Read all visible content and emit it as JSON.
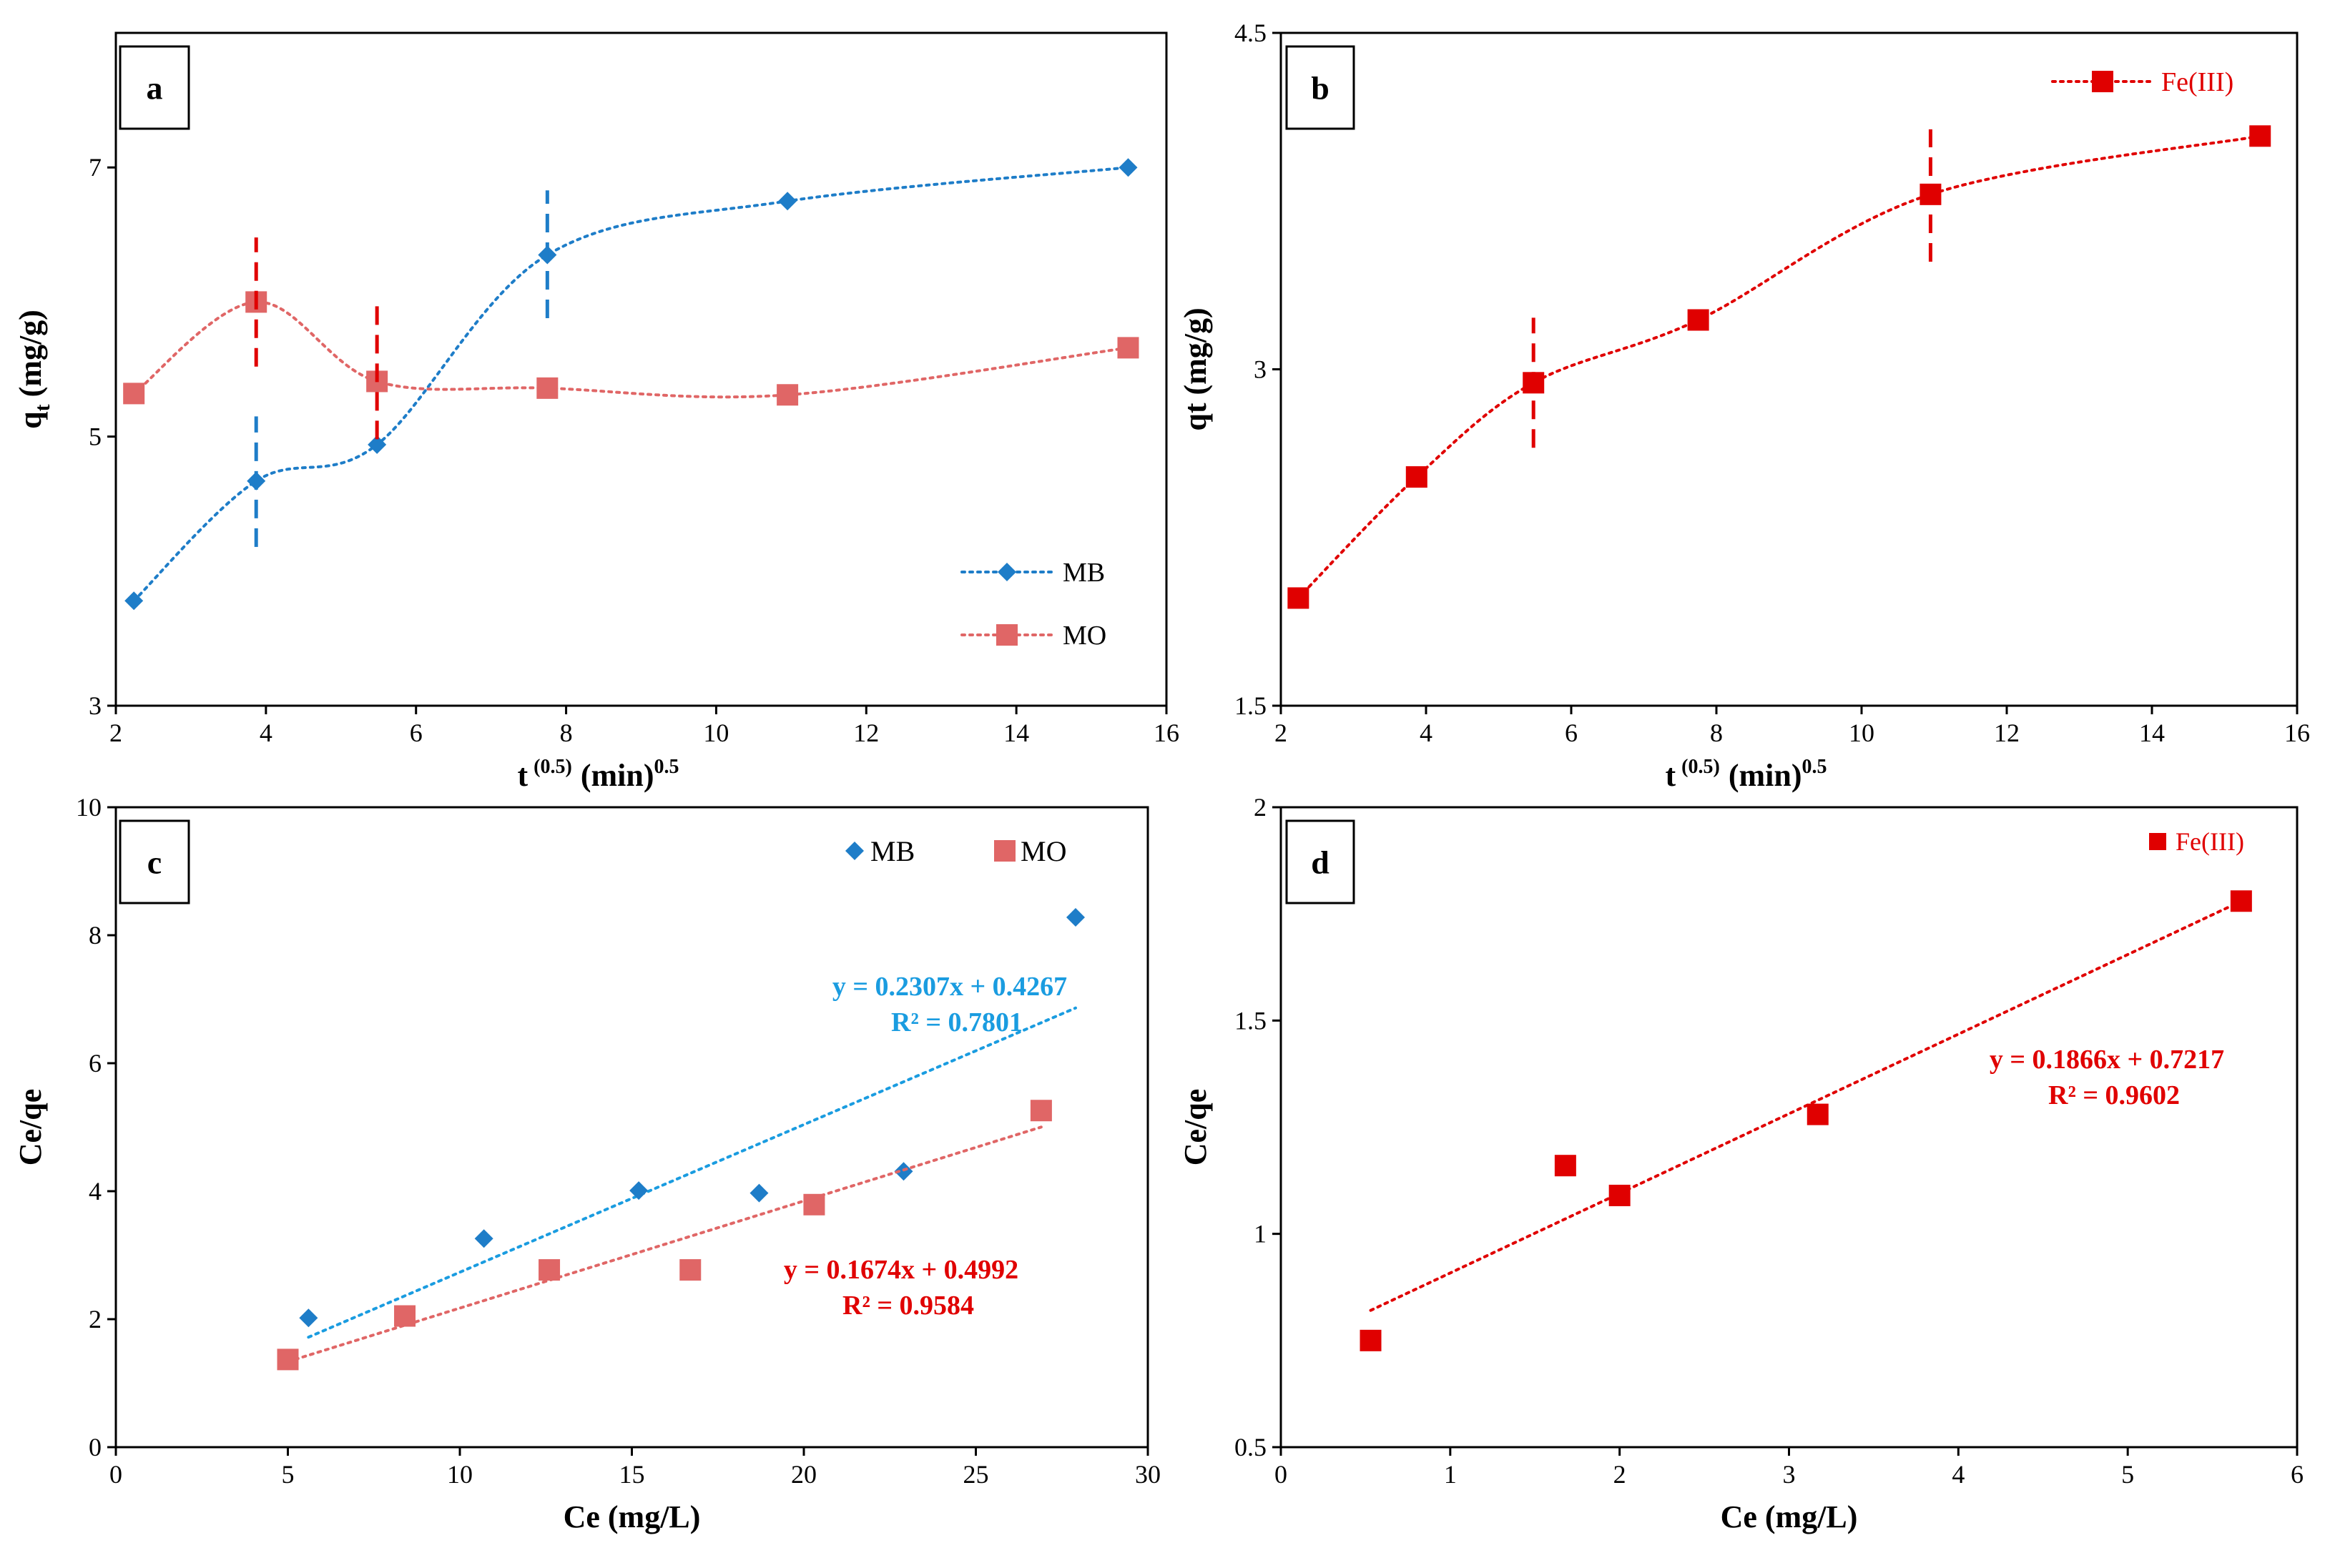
{
  "colors": {
    "mb": "#1E7DC8",
    "mo": "#E06666",
    "fe": "#E00000",
    "eqBlue": "#1A9CE0",
    "eqRed": "#E00000",
    "axis": "#000000"
  },
  "chart_data": [
    {
      "id": "a",
      "panel_label": "a",
      "type": "line",
      "xlabel": "t",
      "xlabel_sup": "(0.5)",
      "xlabel_unit": "(min)",
      "xlabel_unit_sup": "0.5",
      "ylabel": "q",
      "ylabel_sub": "t",
      "ylabel_unit": "(mg/g)",
      "xlim": [
        2,
        16
      ],
      "ylim": [
        3,
        8
      ],
      "xticks": [
        2,
        4,
        6,
        8,
        10,
        12,
        14,
        16
      ],
      "yticks": [
        3,
        5,
        7
      ],
      "series": [
        {
          "name": "MB",
          "marker": "diamond",
          "color": "#1E7DC8",
          "x": [
            2.24,
            3.87,
            5.48,
            7.75,
            10.95,
            15.49
          ],
          "y": [
            3.78,
            4.67,
            4.94,
            6.35,
            6.75,
            7.0
          ]
        },
        {
          "name": "MO",
          "marker": "square",
          "color": "#E06666",
          "x": [
            2.24,
            3.87,
            5.48,
            7.75,
            10.95,
            15.49
          ],
          "y": [
            5.32,
            6.0,
            5.41,
            5.36,
            5.31,
            5.66
          ]
        }
      ],
      "breaks": [
        {
          "x": 3.87,
          "y1": 4.18,
          "y2": 5.15,
          "color": "#1E7DC8"
        },
        {
          "x": 7.75,
          "y1": 5.88,
          "y2": 6.83,
          "color": "#1E7DC8"
        },
        {
          "x": 3.87,
          "y1": 5.52,
          "y2": 6.48,
          "color": "#E00000"
        },
        {
          "x": 5.48,
          "y1": 4.98,
          "y2": 6.0,
          "color": "#E00000"
        }
      ],
      "legend": "bottom-right"
    },
    {
      "id": "b",
      "panel_label": "b",
      "type": "line",
      "xlabel": "t",
      "xlabel_sup": "(0.5)",
      "xlabel_unit": "(min)",
      "xlabel_unit_sup": "0.5",
      "ylabel": "qt (mg/g)",
      "xlim": [
        2,
        16
      ],
      "ylim": [
        1.5,
        4.5
      ],
      "xticks": [
        2,
        4,
        6,
        8,
        10,
        12,
        14,
        16
      ],
      "yticks": [
        1.5,
        3,
        4.5
      ],
      "series": [
        {
          "name": "Fe(III)",
          "marker": "square",
          "color": "#E00000",
          "x": [
            2.24,
            3.87,
            5.48,
            7.75,
            10.95,
            15.49
          ],
          "y": [
            1.98,
            2.52,
            2.94,
            3.22,
            3.78,
            4.04
          ]
        }
      ],
      "breaks": [
        {
          "x": 5.48,
          "y1": 2.65,
          "y2": 3.23,
          "color": "#E00000"
        },
        {
          "x": 10.95,
          "y1": 3.48,
          "y2": 4.07,
          "color": "#E00000"
        }
      ],
      "legend": "top-right"
    },
    {
      "id": "c",
      "panel_label": "c",
      "type": "scatter",
      "xlabel": "Ce (mg/L)",
      "ylabel": "Ce/qe",
      "xlim": [
        0,
        30
      ],
      "ylim": [
        0,
        10
      ],
      "xticks": [
        0,
        5,
        10,
        15,
        20,
        25,
        30
      ],
      "yticks": [
        0,
        2,
        4,
        6,
        8,
        10
      ],
      "series": [
        {
          "name": "MB",
          "marker": "diamond",
          "color": "#1E7DC8",
          "x": [
            5.6,
            10.7,
            15.2,
            18.7,
            22.9,
            27.9
          ],
          "y": [
            2.02,
            3.26,
            4.01,
            3.97,
            4.31,
            8.28
          ],
          "trend": {
            "x": [
              5.6,
              27.9
            ],
            "slope": 0.2307,
            "intercept": 0.4267
          }
        },
        {
          "name": "MO",
          "marker": "square",
          "color": "#E06666",
          "x": [
            5.0,
            8.4,
            12.6,
            16.7,
            20.3,
            26.9
          ],
          "y": [
            1.37,
            2.05,
            2.77,
            2.77,
            3.79,
            5.26
          ],
          "trend": {
            "x": [
              5.0,
              26.9
            ],
            "slope": 0.1674,
            "intercept": 0.4992
          }
        }
      ],
      "equations": [
        {
          "eq": "y = 0.2307x + 0.4267",
          "r2": "R² = 0.7801",
          "color": "#1A9CE0"
        },
        {
          "eq": "y = 0.1674x + 0.4992",
          "r2": "R² = 0.9584",
          "color": "#E00000"
        }
      ],
      "legend": "top-right"
    },
    {
      "id": "d",
      "panel_label": "d",
      "type": "scatter",
      "xlabel": "Ce (mg/L)",
      "ylabel": "Ce/qe",
      "xlim": [
        0,
        6
      ],
      "ylim": [
        0.5,
        2
      ],
      "xticks": [
        0,
        1,
        2,
        3,
        4,
        5,
        6
      ],
      "yticks": [
        0.5,
        1,
        1.5,
        2
      ],
      "series": [
        {
          "name": "Fe(III)",
          "marker": "square",
          "color": "#E00000",
          "x": [
            0.53,
            1.68,
            2.0,
            3.17,
            5.67
          ],
          "y": [
            0.75,
            1.16,
            1.09,
            1.28,
            1.78
          ],
          "trend": {
            "x": [
              0.53,
              5.67
            ],
            "slope": 0.1866,
            "intercept": 0.7217
          }
        }
      ],
      "equations": [
        {
          "eq": "y = 0.1866x + 0.7217",
          "r2": "R² = 0.9602",
          "color": "#E00000"
        }
      ],
      "legend": "top-right"
    }
  ]
}
